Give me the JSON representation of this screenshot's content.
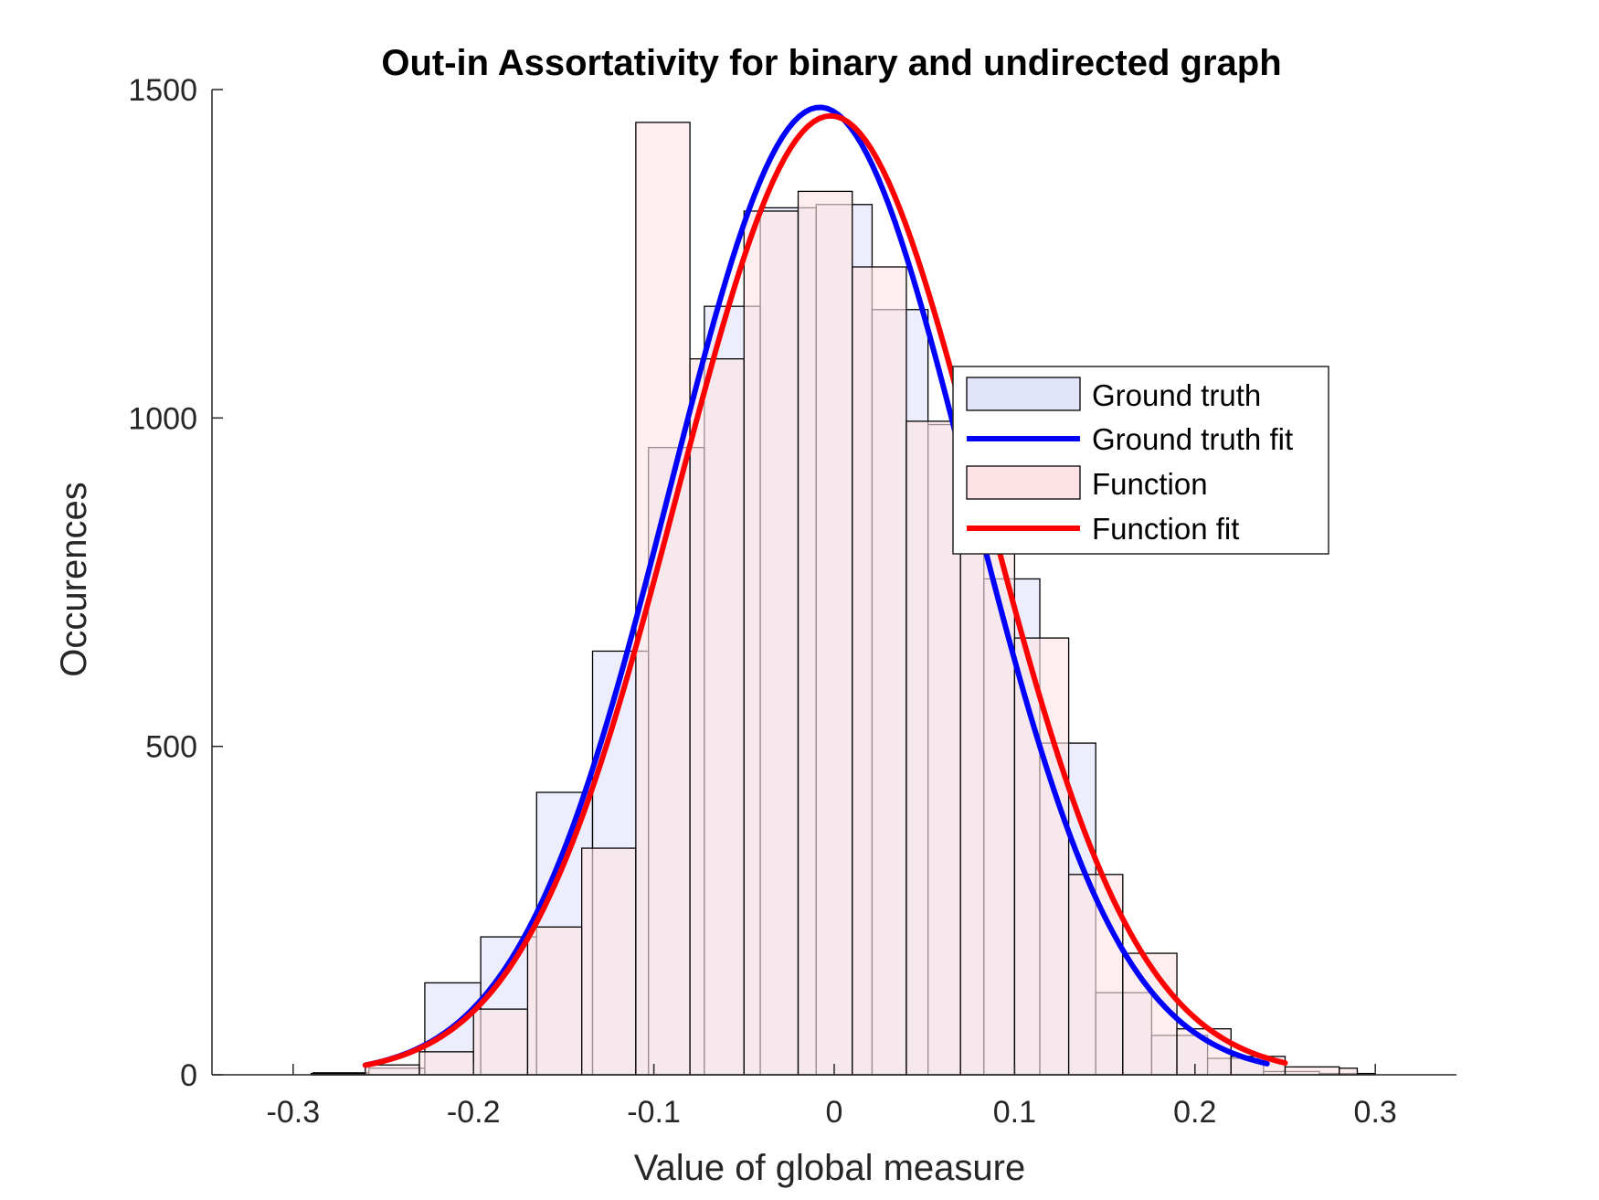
{
  "chart_data": {
    "type": "bar",
    "title": "Out-in Assortativity for binary and undirected graph",
    "xlabel": "Value of global measure",
    "ylabel": "Occurences",
    "xlim": [
      -0.345,
      0.345
    ],
    "ylim": [
      0,
      1500
    ],
    "xticks": [
      -0.3,
      -0.2,
      -0.1,
      0,
      0.1,
      0.2,
      0.3
    ],
    "xtick_labels": [
      "-0.3",
      "-0.2",
      "-0.1",
      "0",
      "0.1",
      "0.2",
      "0.3"
    ],
    "yticks": [
      0,
      500,
      1000,
      1500
    ],
    "ytick_labels": [
      "0",
      "500",
      "1000",
      "1500"
    ],
    "grid": false,
    "legend_position": "center-right",
    "series": [
      {
        "name": "Ground truth",
        "kind": "histogram",
        "color": "#e1e4fb",
        "edges": [
          -0.32,
          -0.289,
          -0.258,
          -0.227,
          -0.196,
          -0.165,
          -0.134,
          -0.103,
          -0.072,
          -0.041,
          -0.01,
          0.021,
          0.052,
          0.083,
          0.114,
          0.145,
          0.176,
          0.207,
          0.238,
          0.269,
          0.3,
          0.32
        ],
        "counts": [
          0,
          3,
          10,
          140,
          210,
          430,
          645,
          955,
          1170,
          1320,
          1325,
          1165,
          990,
          755,
          505,
          125,
          60,
          25,
          5,
          2,
          0
        ]
      },
      {
        "name": "Ground truth fit",
        "kind": "line",
        "color": "#0000ff",
        "mu": -0.008,
        "sigma": 0.083,
        "peak": 1473,
        "x_range": [
          -0.26,
          0.24
        ]
      },
      {
        "name": "Function",
        "kind": "histogram",
        "color": "#fde3e5",
        "edges": [
          -0.29,
          -0.26,
          -0.23,
          -0.2,
          -0.17,
          -0.14,
          -0.11,
          -0.08,
          -0.05,
          -0.02,
          0.01,
          0.04,
          0.07,
          0.1,
          0.13,
          0.16,
          0.19,
          0.22,
          0.25,
          0.28,
          0.29
        ],
        "counts": [
          2,
          15,
          35,
          100,
          225,
          345,
          1450,
          1090,
          1315,
          1345,
          1230,
          995,
          965,
          665,
          305,
          185,
          70,
          28,
          12,
          10
        ]
      },
      {
        "name": "Function fit",
        "kind": "line",
        "color": "#ff0000",
        "mu": -0.002,
        "sigma": 0.085,
        "peak": 1460,
        "x_range": [
          -0.26,
          0.25
        ]
      }
    ]
  }
}
